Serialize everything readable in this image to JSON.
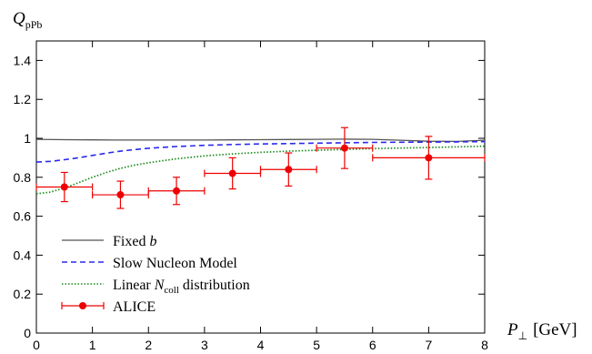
{
  "chart_data": {
    "type": "line",
    "title": "",
    "ylabel_main": "Q",
    "ylabel_sub": "pPb",
    "xlabel_main": "P",
    "xlabel_perp": "⊥",
    "xlabel_unit": "[GeV]",
    "xlim": [
      0,
      8
    ],
    "ylim": [
      0,
      1.5
    ],
    "xticks": [
      0,
      1,
      2,
      3,
      4,
      5,
      6,
      7,
      8
    ],
    "xtick_labels": [
      "0",
      "1",
      "2",
      "3",
      "4",
      "5",
      "6",
      "7",
      "8"
    ],
    "yticks": [
      0,
      0.2,
      0.4,
      0.6,
      0.8,
      1.0,
      1.2,
      1.4
    ],
    "ytick_labels": [
      "0",
      "0.2",
      "0.4",
      "0.6",
      "0.8",
      "1",
      "1.2",
      "1.4"
    ],
    "grid": false,
    "legend_position": "bottom-left",
    "series": [
      {
        "name": "Fixed b",
        "legend_text": "Fixed ",
        "legend_italic": "b",
        "style": "solid",
        "color": "#555555",
        "x": [
          0,
          0.5,
          1,
          1.5,
          2,
          2.5,
          3,
          3.5,
          4,
          4.5,
          5,
          5.5,
          6,
          6.5,
          7,
          7.5,
          8
        ],
        "y": [
          0.995,
          0.993,
          0.992,
          0.991,
          0.991,
          0.991,
          0.991,
          0.992,
          0.993,
          0.994,
          0.995,
          0.996,
          0.995,
          0.99,
          0.985,
          0.984,
          0.99
        ]
      },
      {
        "name": "Slow Nucleon Model",
        "legend_text": "Slow Nucleon Model",
        "style": "dashed",
        "color": "#2a2aee",
        "x": [
          0,
          0.25,
          0.5,
          0.75,
          1,
          1.25,
          1.5,
          1.75,
          2,
          2.5,
          3,
          3.5,
          4,
          4.5,
          5,
          5.5,
          6,
          6.5,
          7,
          7.5,
          8
        ],
        "y": [
          0.878,
          0.882,
          0.89,
          0.9,
          0.912,
          0.924,
          0.934,
          0.942,
          0.949,
          0.958,
          0.964,
          0.968,
          0.971,
          0.973,
          0.975,
          0.977,
          0.979,
          0.98,
          0.981,
          0.982,
          0.983
        ]
      },
      {
        "name": "Linear N_coll distribution",
        "legend_text": "Linear ",
        "legend_italic": "N",
        "legend_sub": "coll",
        "legend_tail": " distribution",
        "style": "dotted",
        "color": "#1a8a1a",
        "x": [
          0,
          0.25,
          0.5,
          0.75,
          1,
          1.25,
          1.5,
          1.75,
          2,
          2.5,
          3,
          3.5,
          4,
          4.5,
          5,
          5.5,
          6,
          6.5,
          7,
          7.5,
          8
        ],
        "y": [
          0.715,
          0.724,
          0.745,
          0.772,
          0.8,
          0.825,
          0.846,
          0.862,
          0.875,
          0.895,
          0.91,
          0.92,
          0.928,
          0.934,
          0.939,
          0.943,
          0.947,
          0.95,
          0.953,
          0.956,
          0.96
        ]
      },
      {
        "name": "ALICE",
        "legend_text": "ALICE",
        "style": "points",
        "color": "#ee0000",
        "points": [
          {
            "x": 0.5,
            "y": 0.75,
            "xerr": 0.5,
            "yerr": 0.075
          },
          {
            "x": 1.5,
            "y": 0.71,
            "xerr": 0.5,
            "yerr": 0.07
          },
          {
            "x": 2.5,
            "y": 0.73,
            "xerr": 0.5,
            "yerr": 0.07
          },
          {
            "x": 3.5,
            "y": 0.82,
            "xerr": 0.5,
            "yerr": 0.08
          },
          {
            "x": 4.5,
            "y": 0.84,
            "xerr": 0.5,
            "yerr": 0.085
          },
          {
            "x": 5.5,
            "y": 0.95,
            "xerr": 0.5,
            "yerr": 0.105
          },
          {
            "x": 7.0,
            "y": 0.9,
            "xerr": 1.0,
            "yerr": 0.11
          }
        ]
      }
    ]
  }
}
